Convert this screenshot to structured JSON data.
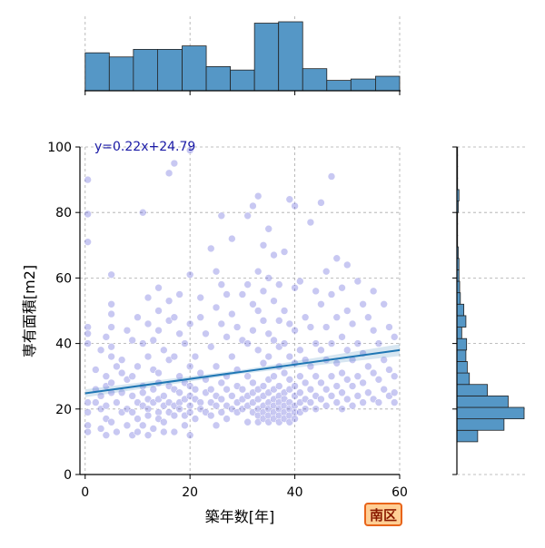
{
  "chart_data": {
    "type": "scatter",
    "kind": "jointplot",
    "xlabel": "築年数[年]",
    "ylabel": "専有面積[m2]",
    "xlim": [
      -1,
      60
    ],
    "ylim": [
      0,
      100
    ],
    "x_ticks": [
      0,
      20,
      40,
      60
    ],
    "y_ticks": [
      0,
      20,
      40,
      60,
      80,
      100
    ],
    "grid": true,
    "regression": {
      "slope": 0.22,
      "intercept": 24.79,
      "label": "y=0.22x+24.79"
    },
    "region_label": "南区",
    "colors": {
      "point": "#3a3ad0",
      "hist": "#5597c6",
      "regression_line": "#1f77b4",
      "badge_border": "#e8641a",
      "badge_fill": "#ffcf95"
    },
    "x_hist": {
      "bin_edges": [
        0,
        4.6,
        9.2,
        13.8,
        18.5,
        23.1,
        27.7,
        32.3,
        36.9,
        41.5,
        46.1,
        50.7,
        55.4,
        60
      ],
      "counts": [
        55,
        49,
        60,
        60,
        65,
        35,
        30,
        98,
        100,
        32,
        15,
        17,
        21
      ]
    },
    "y_hist": {
      "bin_edges": [
        10,
        13.5,
        17,
        20.5,
        24,
        27.5,
        31,
        34.5,
        38,
        41.5,
        45,
        48.5,
        52,
        55.5,
        59,
        62.5,
        66,
        69.5,
        73,
        76.5,
        80,
        83.5,
        87,
        90.5,
        94,
        97.5,
        100
      ],
      "counts": [
        30,
        68,
        97,
        74,
        44,
        18,
        15,
        13,
        14,
        7,
        13,
        10,
        5,
        4,
        3,
        3,
        2,
        1,
        1,
        1,
        2,
        3,
        1,
        1,
        1,
        1
      ]
    },
    "points": [
      [
        0.5,
        90
      ],
      [
        0.5,
        79.5
      ],
      [
        0.5,
        71
      ],
      [
        0.5,
        45
      ],
      [
        0.5,
        43
      ],
      [
        0.5,
        40
      ],
      [
        0.5,
        22
      ],
      [
        0.5,
        19
      ],
      [
        0.5,
        15
      ],
      [
        0.5,
        13
      ],
      [
        2,
        26
      ],
      [
        2,
        22
      ],
      [
        2,
        32
      ],
      [
        3,
        38
      ],
      [
        3,
        24
      ],
      [
        3,
        20
      ],
      [
        3,
        14
      ],
      [
        4,
        42
      ],
      [
        4,
        27
      ],
      [
        4,
        21
      ],
      [
        4,
        17
      ],
      [
        4,
        30
      ],
      [
        4,
        12
      ],
      [
        5,
        61
      ],
      [
        5,
        52
      ],
      [
        5,
        49
      ],
      [
        5,
        45
      ],
      [
        5,
        39
      ],
      [
        5,
        36
      ],
      [
        5,
        28
      ],
      [
        5,
        25
      ],
      [
        5,
        16
      ],
      [
        6,
        33
      ],
      [
        6,
        22
      ],
      [
        6,
        13
      ],
      [
        7,
        35
      ],
      [
        7,
        25
      ],
      [
        7,
        19
      ],
      [
        7,
        31
      ],
      [
        8,
        29
      ],
      [
        8,
        44
      ],
      [
        8,
        20
      ],
      [
        8,
        15
      ],
      [
        9,
        41
      ],
      [
        9,
        30
      ],
      [
        9,
        24
      ],
      [
        9,
        19
      ],
      [
        9,
        12
      ],
      [
        10,
        48
      ],
      [
        10,
        33
      ],
      [
        10,
        22
      ],
      [
        10,
        17
      ],
      [
        10,
        13
      ],
      [
        11,
        80
      ],
      [
        11,
        40
      ],
      [
        11,
        27
      ],
      [
        11,
        25
      ],
      [
        11,
        21
      ],
      [
        11,
        15
      ],
      [
        12,
        54
      ],
      [
        12,
        46
      ],
      [
        12,
        36
      ],
      [
        12,
        23
      ],
      [
        12,
        20
      ],
      [
        12,
        18
      ],
      [
        12,
        12
      ],
      [
        13,
        41
      ],
      [
        13,
        32
      ],
      [
        13,
        26
      ],
      [
        13,
        22
      ],
      [
        13,
        14
      ],
      [
        14,
        57
      ],
      [
        14,
        50
      ],
      [
        14,
        44
      ],
      [
        14,
        31
      ],
      [
        14,
        28
      ],
      [
        14,
        23
      ],
      [
        14,
        19
      ],
      [
        14,
        17
      ],
      [
        15,
        38
      ],
      [
        15,
        24
      ],
      [
        15,
        21
      ],
      [
        15,
        16
      ],
      [
        15,
        13
      ],
      [
        16,
        92
      ],
      [
        16,
        53
      ],
      [
        16,
        47
      ],
      [
        16,
        35
      ],
      [
        16,
        27
      ],
      [
        16,
        22
      ],
      [
        16,
        19
      ],
      [
        17,
        95
      ],
      [
        17,
        48
      ],
      [
        17,
        36
      ],
      [
        17,
        26
      ],
      [
        17,
        21
      ],
      [
        17,
        18
      ],
      [
        17,
        13
      ],
      [
        18,
        55
      ],
      [
        18,
        43
      ],
      [
        18,
        30
      ],
      [
        18,
        25
      ],
      [
        18,
        22
      ],
      [
        18,
        20
      ],
      [
        19,
        40
      ],
      [
        19,
        28
      ],
      [
        19,
        23
      ],
      [
        19,
        18
      ],
      [
        19,
        15
      ],
      [
        20,
        99
      ],
      [
        20,
        61
      ],
      [
        20,
        46
      ],
      [
        20,
        33
      ],
      [
        20,
        27
      ],
      [
        20,
        24
      ],
      [
        20,
        21
      ],
      [
        20,
        19
      ],
      [
        20,
        12
      ],
      [
        21,
        36
      ],
      [
        21,
        26
      ],
      [
        21,
        23
      ],
      [
        21,
        17
      ],
      [
        22,
        54
      ],
      [
        22,
        48
      ],
      [
        22,
        31
      ],
      [
        22,
        22
      ],
      [
        22,
        20
      ],
      [
        23,
        43
      ],
      [
        23,
        29
      ],
      [
        23,
        25
      ],
      [
        23,
        19
      ],
      [
        24,
        69
      ],
      [
        24,
        39
      ],
      [
        24,
        26
      ],
      [
        24,
        22
      ],
      [
        24,
        18
      ],
      [
        25,
        62
      ],
      [
        25,
        51
      ],
      [
        25,
        33
      ],
      [
        25,
        24
      ],
      [
        25,
        21
      ],
      [
        25,
        15
      ],
      [
        26,
        79
      ],
      [
        26,
        58
      ],
      [
        26,
        46
      ],
      [
        26,
        28
      ],
      [
        26,
        23
      ],
      [
        26,
        19
      ],
      [
        27,
        55
      ],
      [
        27,
        42
      ],
      [
        27,
        30
      ],
      [
        27,
        26
      ],
      [
        27,
        21
      ],
      [
        27,
        17
      ],
      [
        28,
        72
      ],
      [
        28,
        49
      ],
      [
        28,
        36
      ],
      [
        28,
        24
      ],
      [
        28,
        20
      ],
      [
        29,
        45
      ],
      [
        29,
        32
      ],
      [
        29,
        27
      ],
      [
        29,
        22
      ],
      [
        29,
        19
      ],
      [
        30,
        55
      ],
      [
        30,
        41
      ],
      [
        30,
        26
      ],
      [
        30,
        23
      ],
      [
        30,
        20
      ],
      [
        31,
        79
      ],
      [
        31,
        58
      ],
      [
        31,
        40
      ],
      [
        31,
        30
      ],
      [
        31,
        24
      ],
      [
        31,
        21
      ],
      [
        31,
        16
      ],
      [
        32,
        82
      ],
      [
        32,
        52
      ],
      [
        32,
        44
      ],
      [
        32,
        28
      ],
      [
        32,
        25
      ],
      [
        32,
        22
      ],
      [
        32,
        19
      ],
      [
        33,
        85
      ],
      [
        33,
        62
      ],
      [
        33,
        50
      ],
      [
        33,
        38
      ],
      [
        33,
        26
      ],
      [
        33,
        23
      ],
      [
        33,
        20
      ],
      [
        33,
        18
      ],
      [
        33,
        16
      ],
      [
        34,
        70
      ],
      [
        34,
        56
      ],
      [
        34,
        47
      ],
      [
        34,
        34
      ],
      [
        34,
        27
      ],
      [
        34,
        24
      ],
      [
        34,
        21
      ],
      [
        34,
        19
      ],
      [
        34,
        17
      ],
      [
        35,
        75
      ],
      [
        35,
        60
      ],
      [
        35,
        43
      ],
      [
        35,
        36
      ],
      [
        35,
        29
      ],
      [
        35,
        25
      ],
      [
        35,
        22
      ],
      [
        35,
        20
      ],
      [
        35,
        18
      ],
      [
        35,
        16
      ],
      [
        36,
        67
      ],
      [
        36,
        53
      ],
      [
        36,
        41
      ],
      [
        36,
        30
      ],
      [
        36,
        26
      ],
      [
        36,
        23
      ],
      [
        36,
        21
      ],
      [
        36,
        19
      ],
      [
        36,
        17
      ],
      [
        37,
        58
      ],
      [
        37,
        47
      ],
      [
        37,
        39
      ],
      [
        37,
        33
      ],
      [
        37,
        27
      ],
      [
        37,
        24
      ],
      [
        37,
        22
      ],
      [
        37,
        20
      ],
      [
        37,
        18
      ],
      [
        37,
        16
      ],
      [
        38,
        68
      ],
      [
        38,
        50
      ],
      [
        38,
        40
      ],
      [
        38,
        31
      ],
      [
        38,
        25
      ],
      [
        38,
        23
      ],
      [
        38,
        21
      ],
      [
        38,
        19
      ],
      [
        38,
        17
      ],
      [
        39,
        84
      ],
      [
        39,
        46
      ],
      [
        39,
        36
      ],
      [
        39,
        29
      ],
      [
        39,
        26
      ],
      [
        39,
        22
      ],
      [
        39,
        20
      ],
      [
        39,
        18
      ],
      [
        39,
        16
      ],
      [
        40,
        82
      ],
      [
        40,
        57
      ],
      [
        40,
        44
      ],
      [
        40,
        34
      ],
      [
        40,
        27
      ],
      [
        40,
        24
      ],
      [
        40,
        21
      ],
      [
        40,
        19
      ],
      [
        40,
        17
      ],
      [
        41,
        59
      ],
      [
        41,
        38
      ],
      [
        41,
        30
      ],
      [
        41,
        25
      ],
      [
        41,
        22
      ],
      [
        41,
        19
      ],
      [
        42,
        48
      ],
      [
        42,
        35
      ],
      [
        42,
        28
      ],
      [
        42,
        23
      ],
      [
        42,
        20
      ],
      [
        43,
        77
      ],
      [
        43,
        45
      ],
      [
        43,
        33
      ],
      [
        43,
        26
      ],
      [
        43,
        22
      ],
      [
        44,
        56
      ],
      [
        44,
        40
      ],
      [
        44,
        30
      ],
      [
        44,
        24
      ],
      [
        44,
        20
      ],
      [
        45,
        83
      ],
      [
        45,
        52
      ],
      [
        45,
        38
      ],
      [
        45,
        28
      ],
      [
        45,
        23
      ],
      [
        46,
        62
      ],
      [
        46,
        45
      ],
      [
        46,
        35
      ],
      [
        46,
        26
      ],
      [
        46,
        21
      ],
      [
        47,
        91
      ],
      [
        47,
        55
      ],
      [
        47,
        40
      ],
      [
        47,
        30
      ],
      [
        47,
        24
      ],
      [
        48,
        66
      ],
      [
        48,
        48
      ],
      [
        48,
        34
      ],
      [
        48,
        27
      ],
      [
        48,
        22
      ],
      [
        49,
        57
      ],
      [
        49,
        42
      ],
      [
        49,
        31
      ],
      [
        49,
        25
      ],
      [
        49,
        20
      ],
      [
        50,
        64
      ],
      [
        50,
        50
      ],
      [
        50,
        38
      ],
      [
        50,
        29
      ],
      [
        50,
        23
      ],
      [
        51,
        46
      ],
      [
        51,
        35
      ],
      [
        51,
        27
      ],
      [
        51,
        21
      ],
      [
        52,
        59
      ],
      [
        52,
        40
      ],
      [
        52,
        30
      ],
      [
        52,
        24
      ],
      [
        53,
        52
      ],
      [
        53,
        37
      ],
      [
        53,
        28
      ],
      [
        53,
        22
      ],
      [
        54,
        48
      ],
      [
        54,
        33
      ],
      [
        54,
        25
      ],
      [
        55,
        56
      ],
      [
        55,
        44
      ],
      [
        55,
        31
      ],
      [
        55,
        23
      ],
      [
        56,
        40
      ],
      [
        56,
        29
      ],
      [
        56,
        22
      ],
      [
        57,
        52
      ],
      [
        57,
        35
      ],
      [
        57,
        26
      ],
      [
        58,
        45
      ],
      [
        58,
        32
      ],
      [
        58,
        24
      ],
      [
        59,
        42
      ],
      [
        59,
        30
      ],
      [
        59,
        25
      ],
      [
        59,
        22
      ]
    ]
  }
}
